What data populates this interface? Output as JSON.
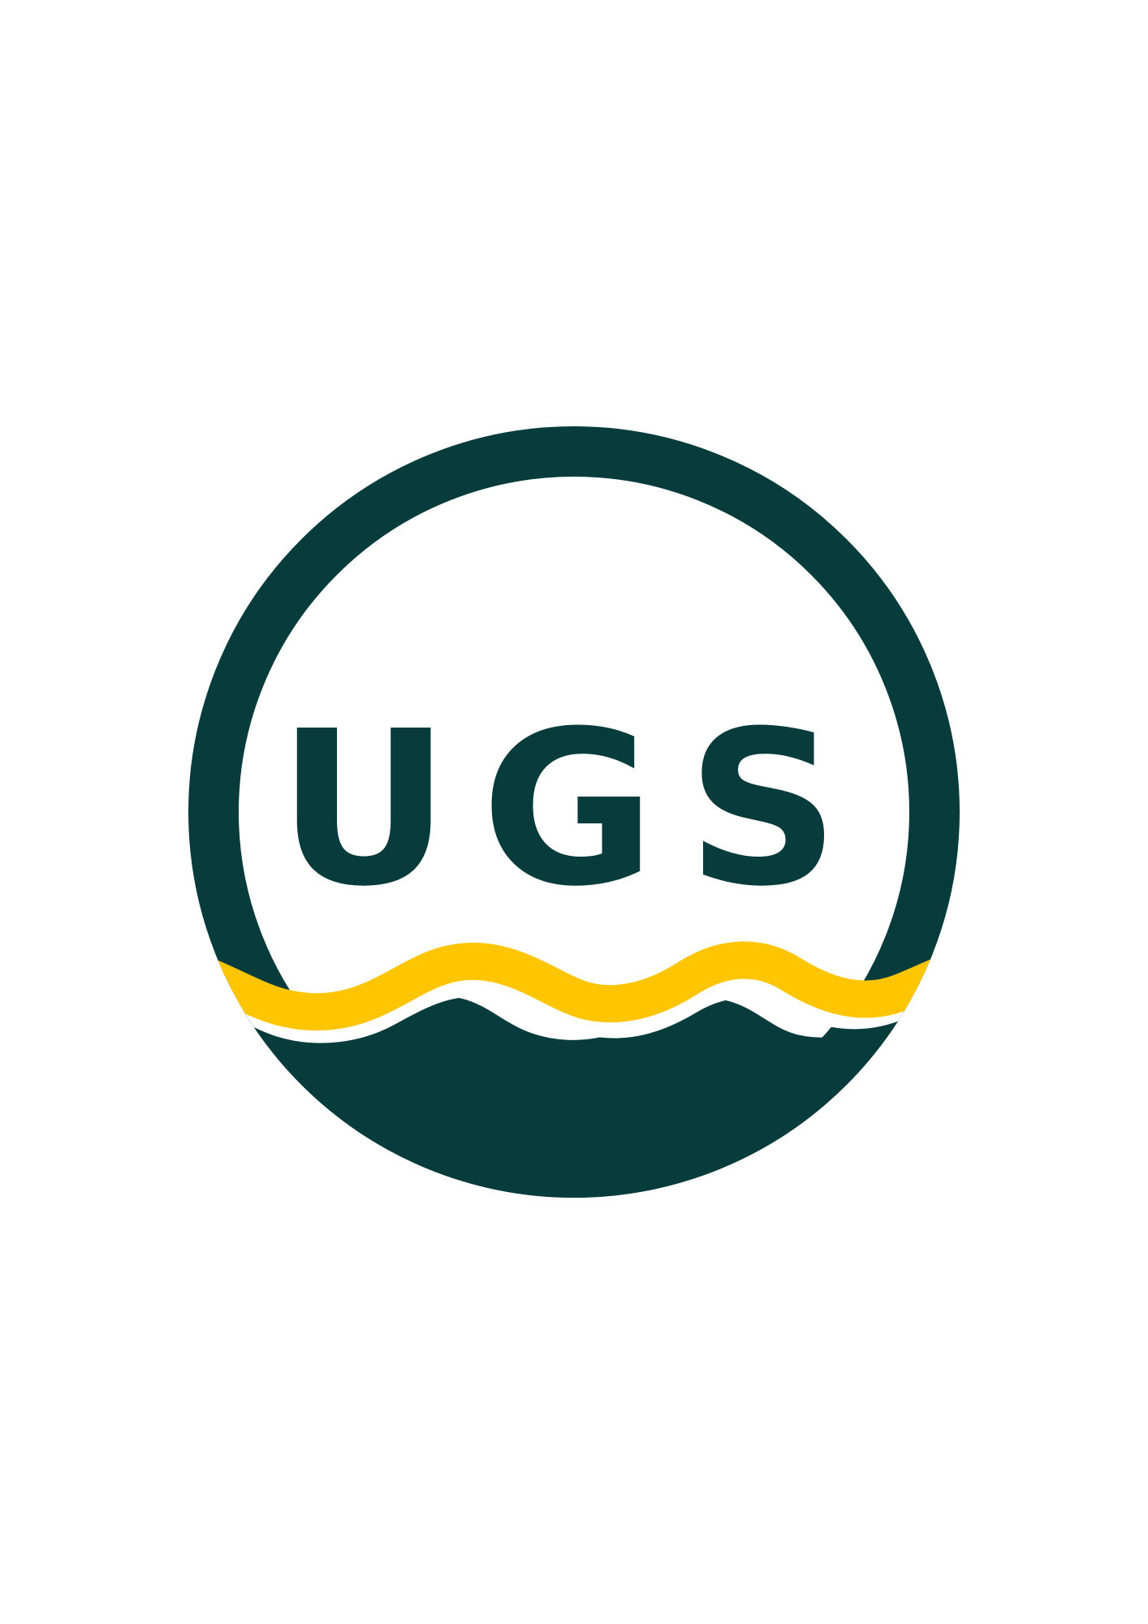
{
  "logo": {
    "text": "UGS",
    "colors": {
      "primary": "#083c3c",
      "accent": "#ffc500",
      "background": "#ffffff"
    }
  }
}
